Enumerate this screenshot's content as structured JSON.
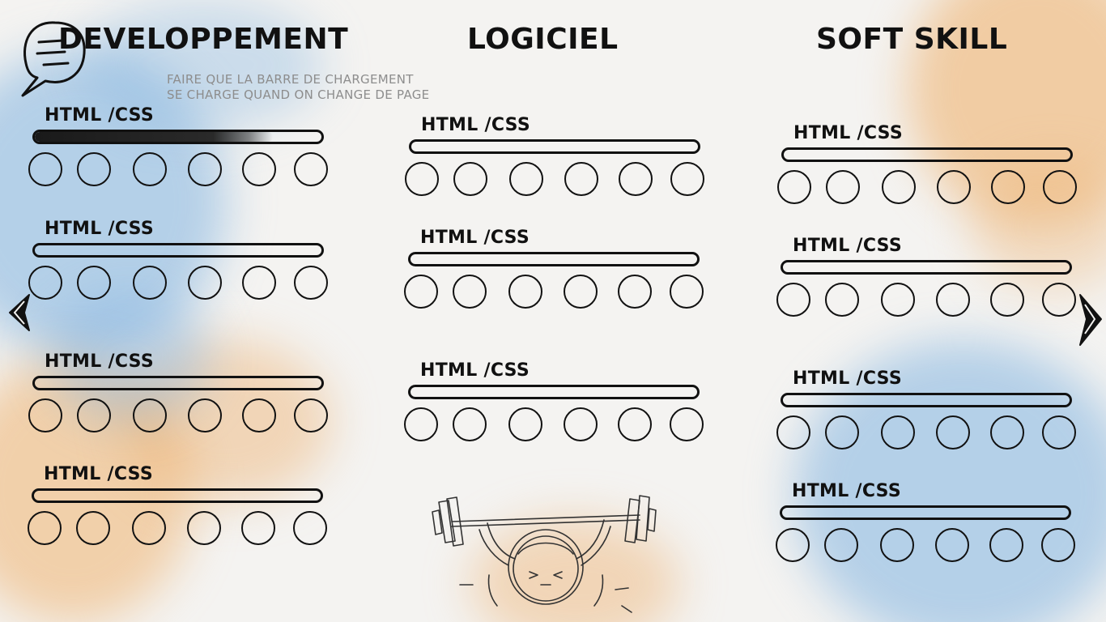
{
  "columns": [
    {
      "title": "DEVELOPPEMENT",
      "skills": [
        {
          "label": "HTML /CSS",
          "progress": 0.83,
          "rating": 0
        },
        {
          "label": "HTML /CSS",
          "progress": 0,
          "rating": 0
        },
        {
          "label": "HTML /CSS",
          "progress": 0,
          "rating": 0
        },
        {
          "label": "HTML /CSS",
          "progress": 0,
          "rating": 0
        }
      ]
    },
    {
      "title": "LOGICIEL",
      "skills": [
        {
          "label": "HTML /CSS",
          "progress": 0,
          "rating": 0
        },
        {
          "label": "HTML /CSS",
          "progress": 0,
          "rating": 0
        },
        {
          "label": "HTML /CSS",
          "progress": 0,
          "rating": 0
        }
      ]
    },
    {
      "title": "SOFT SKILL",
      "skills": [
        {
          "label": "HTML /CSS",
          "progress": 0,
          "rating": 0
        },
        {
          "label": "HTML /CSS",
          "progress": 0,
          "rating": 0
        },
        {
          "label": "HTML /CSS",
          "progress": 0,
          "rating": 0
        },
        {
          "label": "HTML /CSS",
          "progress": 0,
          "rating": 0
        }
      ]
    }
  ],
  "note": {
    "line1": "FAIRE QUE LA BARRE DE CHARGEMENT",
    "line2": "SE CHARGE QUAND ON CHANGE DE PAGE"
  },
  "icons": {
    "chat": "chat-bubble-icon",
    "prev": "arrow-left-icon",
    "next": "arrow-right-icon",
    "illustration": "weightlifter-icon"
  },
  "colors": {
    "ink": "#111111",
    "note": "#8d8d8d",
    "watercolor_blue": "#7fb2e0",
    "watercolor_orange": "#eeb270"
  }
}
